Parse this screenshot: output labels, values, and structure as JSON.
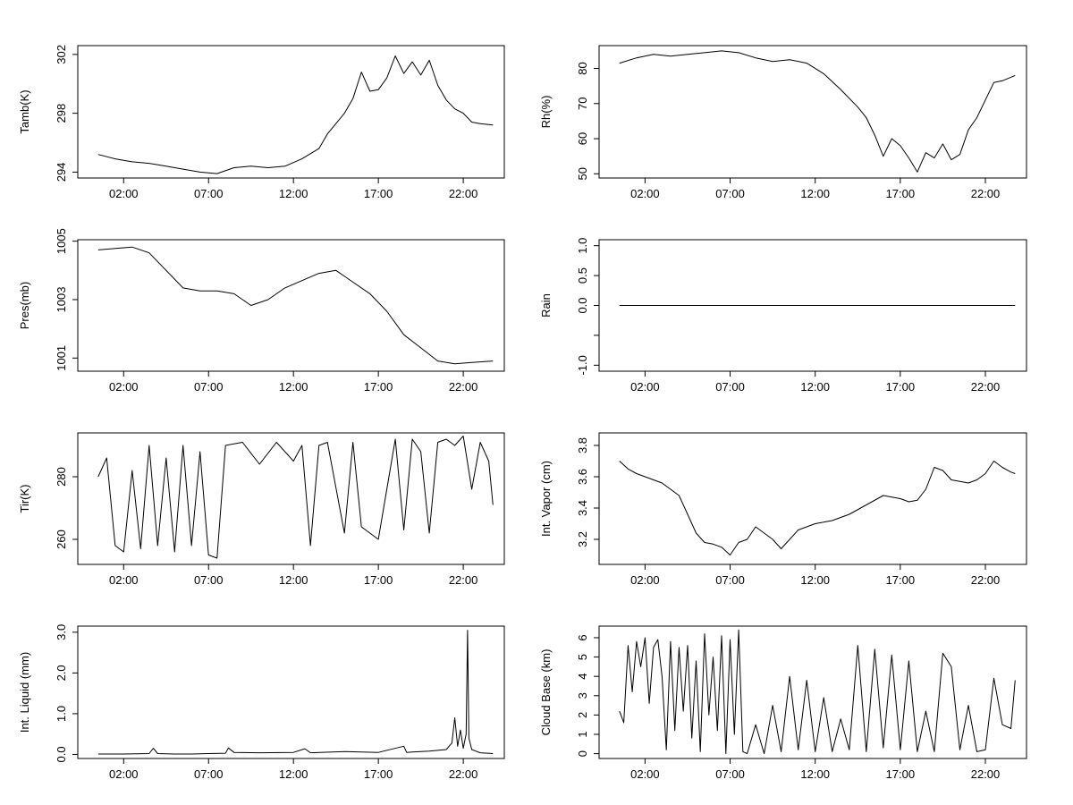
{
  "chart_data": [
    {
      "type": "line",
      "ylabel": "Tamb(K)",
      "ylim": [
        293.6,
        302.6
      ],
      "yticks": [
        294,
        298,
        302
      ],
      "x": [
        "00:30",
        "01:30",
        "02:30",
        "03:30",
        "04:30",
        "05:30",
        "06:30",
        "07:30",
        "08:30",
        "09:30",
        "10:30",
        "11:30",
        "12:30",
        "13:30",
        "14:00",
        "14:30",
        "15:00",
        "15:30",
        "16:00",
        "16:30",
        "17:00",
        "17:30",
        "18:00",
        "18:30",
        "19:00",
        "19:30",
        "20:00",
        "20:30",
        "21:00",
        "21:30",
        "22:00",
        "22:30",
        "23:00",
        "23:45"
      ],
      "values": [
        295.2,
        294.9,
        294.7,
        294.6,
        294.4,
        294.2,
        294.0,
        293.9,
        294.3,
        294.4,
        294.3,
        294.4,
        294.9,
        295.6,
        296.6,
        297.3,
        298.0,
        299.0,
        300.8,
        299.5,
        299.6,
        300.4,
        301.9,
        300.7,
        301.5,
        300.6,
        301.6,
        299.9,
        298.9,
        298.3,
        298.0,
        297.4,
        297.3,
        297.2
      ],
      "xticks": [
        "02:00",
        "07:00",
        "12:00",
        "17:00",
        "22:00"
      ]
    },
    {
      "type": "line",
      "ylabel": "Rh(%)",
      "ylim": [
        48.8,
        86.5
      ],
      "yticks": [
        50,
        60,
        70,
        80
      ],
      "x": [
        "00:30",
        "01:30",
        "02:30",
        "03:30",
        "04:30",
        "05:30",
        "06:30",
        "07:30",
        "08:30",
        "09:30",
        "10:30",
        "11:30",
        "12:30",
        "13:30",
        "14:30",
        "15:00",
        "15:30",
        "16:00",
        "16:30",
        "17:00",
        "17:30",
        "18:00",
        "18:30",
        "19:00",
        "19:30",
        "20:00",
        "20:30",
        "21:00",
        "21:30",
        "22:00",
        "22:30",
        "23:00",
        "23:45"
      ],
      "values": [
        81.5,
        83.0,
        84.0,
        83.5,
        84.0,
        84.5,
        85.0,
        84.5,
        83.0,
        82.0,
        82.5,
        81.5,
        78.5,
        74.0,
        69.0,
        66.0,
        61.0,
        55.0,
        60.0,
        58.0,
        54.5,
        50.5,
        56.0,
        54.5,
        58.5,
        54.0,
        55.5,
        62.5,
        66.0,
        71.0,
        76.0,
        76.5,
        78.0
      ]
    },
    {
      "type": "line",
      "ylabel": "Pres(mb)",
      "ylim": [
        1000.55,
        1005.05
      ],
      "yticks": [
        1001,
        1003,
        1005
      ],
      "x": [
        "00:30",
        "01:30",
        "02:30",
        "03:30",
        "04:30",
        "05:30",
        "06:30",
        "07:30",
        "08:30",
        "09:30",
        "10:30",
        "11:30",
        "12:30",
        "13:30",
        "14:30",
        "15:30",
        "16:30",
        "17:30",
        "18:30",
        "19:30",
        "20:30",
        "21:30",
        "22:30",
        "23:45"
      ],
      "values": [
        1004.7,
        1004.75,
        1004.8,
        1004.6,
        1004.0,
        1003.4,
        1003.3,
        1003.3,
        1003.2,
        1002.8,
        1003.0,
        1003.4,
        1003.65,
        1003.9,
        1004.0,
        1003.6,
        1003.2,
        1002.6,
        1001.8,
        1001.35,
        1000.9,
        1000.8,
        1000.85,
        1000.9
      ]
    },
    {
      "type": "line",
      "ylabel": "Rain",
      "ylim": [
        -1.1,
        1.1
      ],
      "yticks": [
        -1.0,
        -0.5,
        0.0,
        0.5,
        1.0
      ],
      "yticklabels": [
        "-1.0",
        "",
        "0.0",
        "0.5",
        "1.0"
      ],
      "x": [
        "00:30",
        "23:45"
      ],
      "values": [
        0,
        0
      ]
    },
    {
      "type": "line",
      "ylabel": "Tir(K)",
      "ylim": [
        252,
        294
      ],
      "yticks": [
        260,
        280
      ],
      "x": [
        "00:30",
        "01:00",
        "01:30",
        "02:00",
        "02:30",
        "03:00",
        "03:30",
        "04:00",
        "04:30",
        "05:00",
        "05:30",
        "06:00",
        "06:30",
        "07:00",
        "07:30",
        "08:00",
        "09:00",
        "10:00",
        "11:00",
        "12:00",
        "12:30",
        "13:00",
        "13:30",
        "14:00",
        "15:00",
        "15:30",
        "16:00",
        "17:00",
        "18:00",
        "18:30",
        "19:00",
        "19:30",
        "20:00",
        "20:30",
        "21:00",
        "21:30",
        "22:00",
        "22:30",
        "23:00",
        "23:30",
        "23:45"
      ],
      "values": [
        280,
        286,
        258,
        256,
        282,
        257,
        290,
        258,
        286,
        256,
        290,
        258,
        288,
        255,
        254,
        290,
        291,
        284,
        291,
        285,
        290,
        258,
        290,
        291,
        262,
        291,
        264,
        260,
        292,
        263,
        292,
        288,
        262,
        291,
        292,
        290,
        293,
        276,
        291,
        285,
        271
      ]
    },
    {
      "type": "line",
      "ylabel": "Int. Vapor (cm)",
      "ylim": [
        3.04,
        3.88
      ],
      "yticks": [
        3.2,
        3.4,
        3.6,
        3.8
      ],
      "x": [
        "00:30",
        "01:00",
        "01:30",
        "02:00",
        "02:30",
        "03:00",
        "03:30",
        "04:00",
        "04:30",
        "05:00",
        "05:30",
        "06:00",
        "06:30",
        "07:00",
        "07:30",
        "08:00",
        "08:30",
        "09:00",
        "09:30",
        "10:00",
        "11:00",
        "12:00",
        "13:00",
        "14:00",
        "15:00",
        "16:00",
        "17:00",
        "17:30",
        "18:00",
        "18:30",
        "19:00",
        "19:30",
        "20:00",
        "20:30",
        "21:00",
        "21:30",
        "22:00",
        "22:30",
        "23:00",
        "23:30",
        "23:45"
      ],
      "values": [
        3.7,
        3.65,
        3.62,
        3.6,
        3.58,
        3.56,
        3.52,
        3.48,
        3.36,
        3.24,
        3.18,
        3.17,
        3.15,
        3.1,
        3.18,
        3.2,
        3.28,
        3.24,
        3.2,
        3.14,
        3.26,
        3.3,
        3.32,
        3.36,
        3.42,
        3.48,
        3.46,
        3.44,
        3.45,
        3.52,
        3.66,
        3.64,
        3.58,
        3.57,
        3.56,
        3.58,
        3.62,
        3.7,
        3.66,
        3.63,
        3.62
      ]
    },
    {
      "type": "line",
      "ylabel": "Int. Liquid (mm)",
      "ylim": [
        -0.1,
        3.15
      ],
      "yticks": [
        0.0,
        1.0,
        2.0,
        3.0
      ],
      "yticklabels": [
        "0.0",
        "1.0",
        "2.0",
        "3.0"
      ],
      "x": [
        "00:30",
        "02:00",
        "03:30",
        "03:45",
        "04:00",
        "05:00",
        "06:00",
        "07:00",
        "08:00",
        "08:10",
        "08:30",
        "10:00",
        "12:00",
        "12:40",
        "13:00",
        "15:00",
        "16:00",
        "17:00",
        "18:30",
        "18:40",
        "19:00",
        "20:00",
        "21:00",
        "21:20",
        "21:30",
        "21:40",
        "21:50",
        "22:00",
        "22:10",
        "22:15",
        "22:20",
        "22:30",
        "22:45",
        "23:00",
        "23:45"
      ],
      "values": [
        0.01,
        0.01,
        0.02,
        0.15,
        0.02,
        0.01,
        0.01,
        0.02,
        0.03,
        0.16,
        0.05,
        0.04,
        0.05,
        0.14,
        0.04,
        0.07,
        0.06,
        0.05,
        0.2,
        0.05,
        0.06,
        0.08,
        0.12,
        0.28,
        0.9,
        0.2,
        0.6,
        0.15,
        0.5,
        3.05,
        0.4,
        0.12,
        0.08,
        0.04,
        0.02
      ]
    },
    {
      "type": "line",
      "ylabel": "Cloud Base (km)",
      "ylim": [
        -0.25,
        6.6
      ],
      "yticks": [
        0,
        1,
        2,
        3,
        4,
        5,
        6
      ],
      "x": [
        "00:30",
        "00:45",
        "01:00",
        "01:15",
        "01:30",
        "01:45",
        "02:00",
        "02:15",
        "02:30",
        "02:45",
        "03:00",
        "03:15",
        "03:30",
        "03:45",
        "04:00",
        "04:15",
        "04:30",
        "04:45",
        "05:00",
        "05:15",
        "05:30",
        "05:45",
        "06:00",
        "06:15",
        "06:30",
        "06:45",
        "07:00",
        "07:15",
        "07:30",
        "07:45",
        "08:00",
        "08:30",
        "09:00",
        "09:30",
        "10:00",
        "10:30",
        "11:00",
        "11:30",
        "12:00",
        "12:30",
        "13:00",
        "13:30",
        "14:00",
        "14:30",
        "15:00",
        "15:30",
        "16:00",
        "16:30",
        "17:00",
        "17:30",
        "18:00",
        "18:30",
        "19:00",
        "19:30",
        "20:00",
        "20:30",
        "21:00",
        "21:30",
        "22:00",
        "22:30",
        "23:00",
        "23:30",
        "23:45"
      ],
      "values": [
        2.2,
        1.6,
        5.6,
        3.2,
        5.8,
        4.5,
        6.0,
        2.6,
        5.5,
        5.9,
        4.0,
        0.2,
        5.8,
        1.2,
        5.5,
        2.2,
        5.6,
        0.8,
        4.8,
        0.1,
        6.2,
        2.0,
        5.0,
        1.2,
        6.1,
        0.0,
        5.9,
        1.0,
        6.4,
        0.1,
        0.0,
        1.5,
        0.0,
        2.5,
        0.1,
        4.0,
        0.2,
        3.8,
        0.1,
        2.9,
        0.1,
        1.8,
        0.2,
        5.6,
        0.1,
        5.4,
        0.3,
        5.1,
        0.2,
        4.8,
        0.1,
        2.2,
        0.1,
        5.2,
        4.5,
        0.2,
        2.5,
        0.1,
        0.2,
        3.9,
        1.5,
        1.3,
        3.8
      ]
    }
  ]
}
